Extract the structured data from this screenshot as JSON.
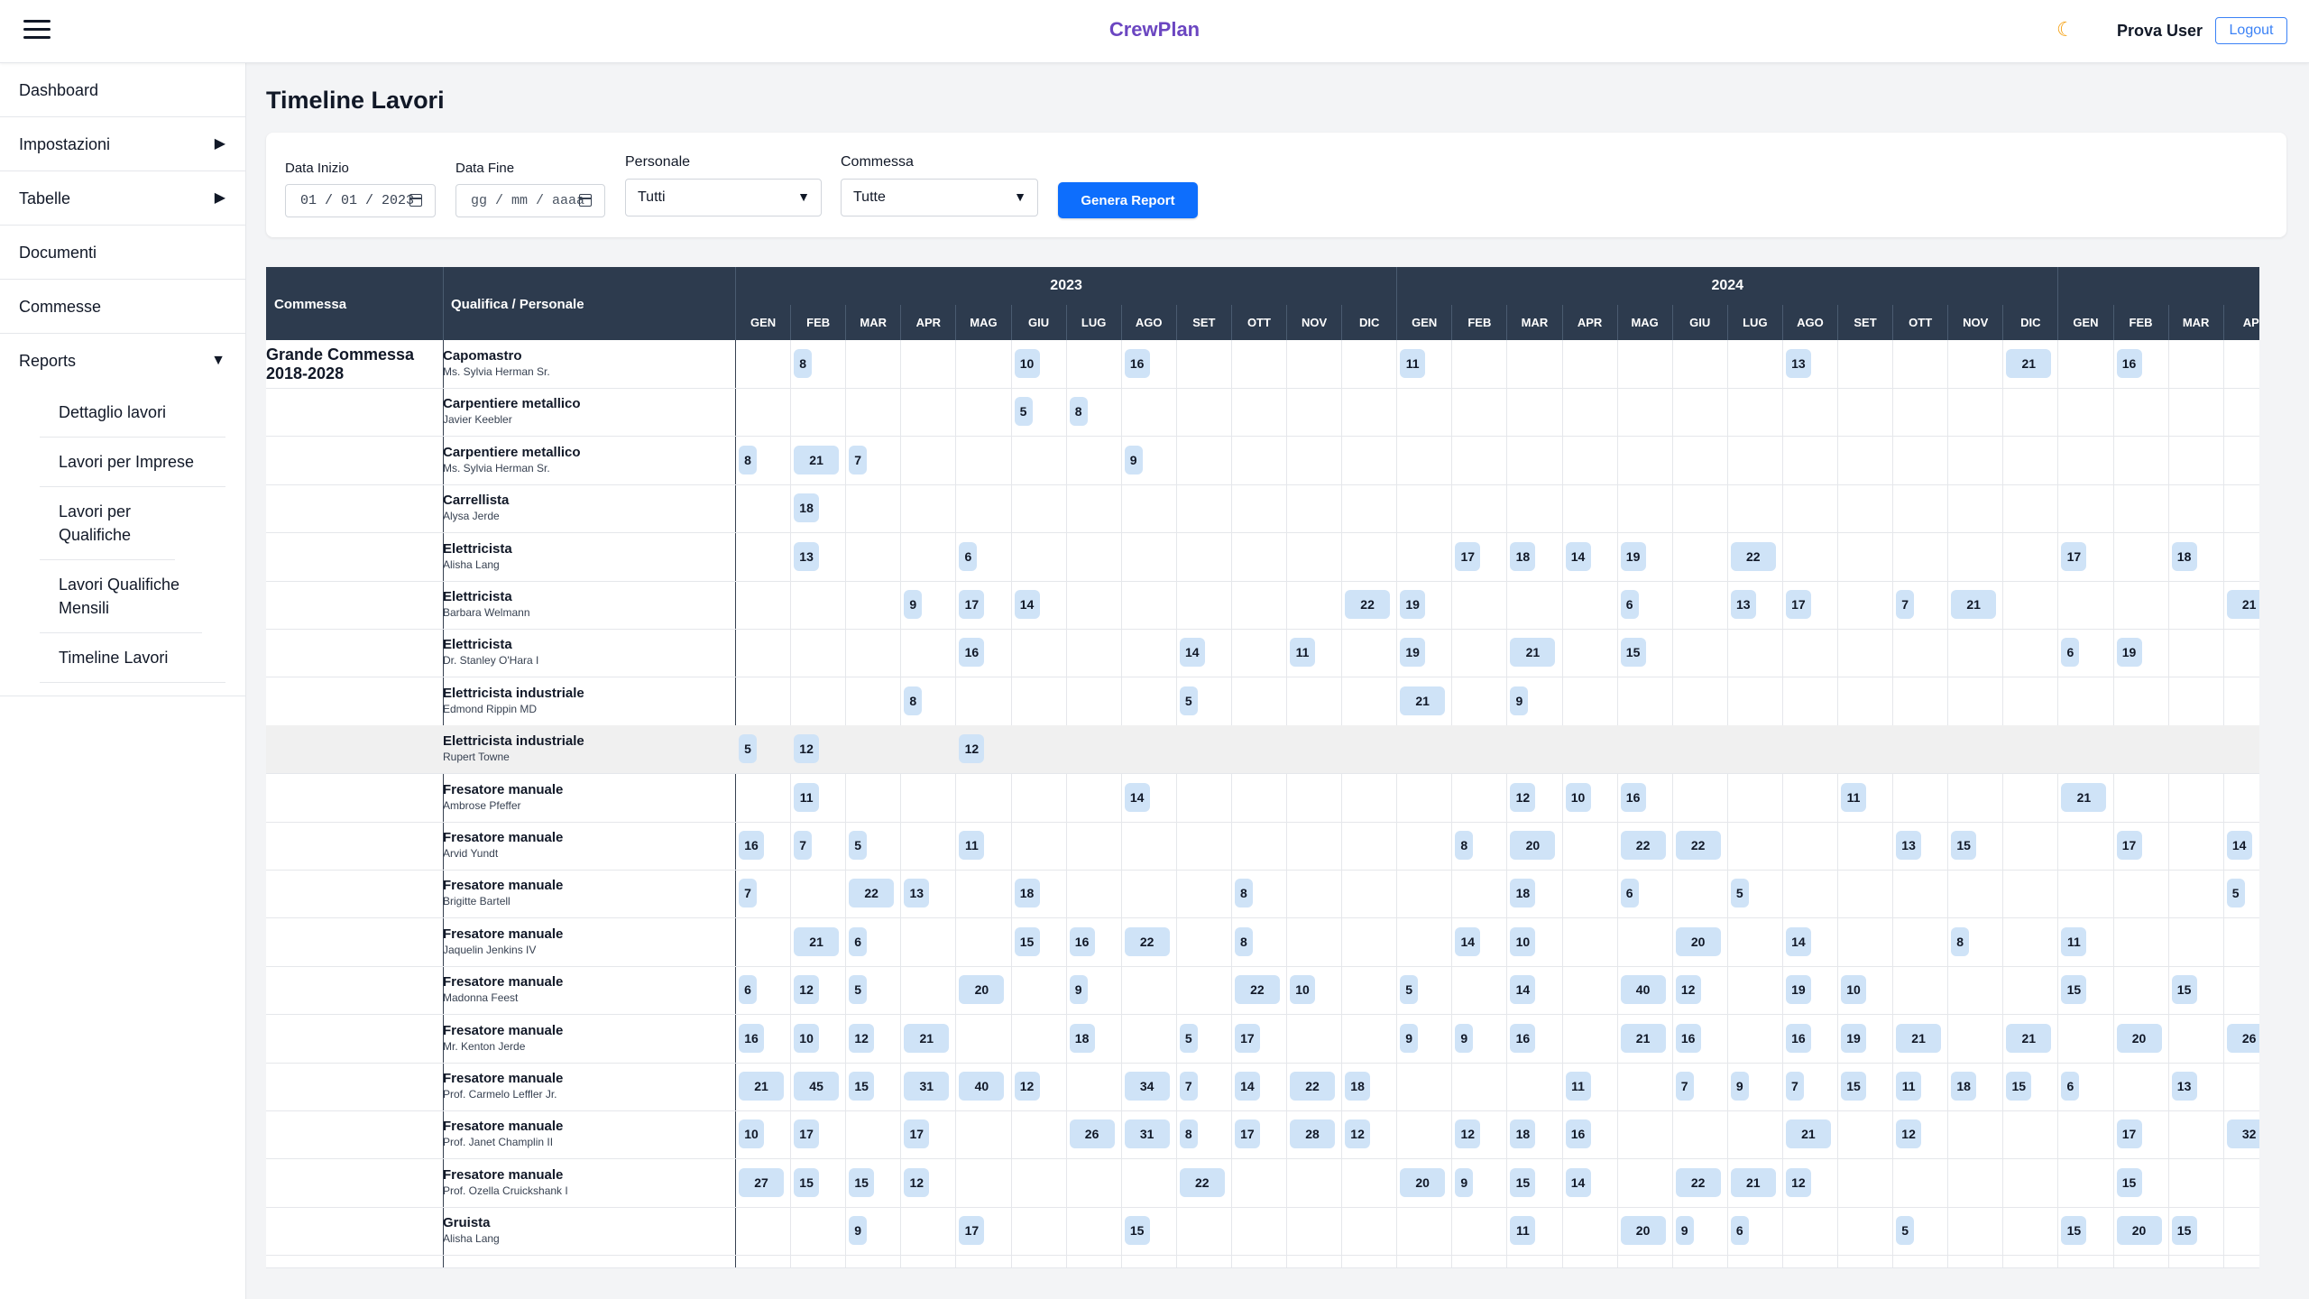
{
  "header": {
    "brand": "CrewPlan",
    "theme_icon": "moon-icon",
    "user": "Prova User",
    "logout_label": "Logout"
  },
  "sidebar": {
    "items": [
      {
        "label": "Dashboard",
        "arrow": ""
      },
      {
        "label": "Impostazioni",
        "arrow": "▶"
      },
      {
        "label": "Tabelle",
        "arrow": "▶"
      },
      {
        "label": "Documenti",
        "arrow": ""
      },
      {
        "label": "Commesse",
        "arrow": ""
      },
      {
        "label": "Reports",
        "arrow": "▼"
      }
    ],
    "reports_sub": [
      "Dettaglio lavori",
      "Lavori per Imprese",
      "Lavori per Qualifiche",
      "Lavori Qualifiche Mensili",
      "Timeline Lavori"
    ]
  },
  "page": {
    "title": "Timeline Lavori"
  },
  "filters": {
    "start_label": "Data Inizio",
    "start_value": "01 / 01 / 2023",
    "end_label": "Data Fine",
    "end_placeholder": "gg / mm / aaaa",
    "personale_label": "Personale",
    "personale_value": "Tutti",
    "commessa_label": "Commessa",
    "commessa_value": "Tutte",
    "generate_label": "Genera Report"
  },
  "timeline": {
    "col_commessa": "Commessa",
    "col_qualifica": "Qualifica / Personale",
    "commessa_name": "Grande Commessa 2018-2028",
    "years": [
      "2023",
      "2024",
      ""
    ],
    "months": [
      "GEN",
      "FEB",
      "MAR",
      "APR",
      "MAG",
      "GIU",
      "LUG",
      "AGO",
      "SET",
      "OTT",
      "NOV",
      "DIC",
      "GEN",
      "FEB",
      "MAR",
      "APR",
      "MAG",
      "GIU",
      "LUG",
      "AGO",
      "SET",
      "OTT",
      "NOV",
      "DIC",
      "GEN",
      "FEB",
      "MAR",
      "AP"
    ],
    "rows": [
      {
        "qualifica": "Capomastro",
        "personale": "Ms. Sylvia Herman Sr.",
        "values": [
          null,
          8,
          null,
          null,
          null,
          10,
          null,
          16,
          null,
          null,
          null,
          null,
          11,
          null,
          null,
          null,
          null,
          null,
          null,
          13,
          null,
          null,
          null,
          21,
          null,
          16,
          null,
          null
        ]
      },
      {
        "qualifica": "Carpentiere metallico",
        "personale": "Javier Keebler",
        "values": [
          null,
          null,
          null,
          null,
          null,
          5,
          8,
          null,
          null,
          null,
          null,
          null,
          null,
          null,
          null,
          null,
          null,
          null,
          null,
          null,
          null,
          null,
          null,
          null,
          null,
          null,
          null,
          null
        ]
      },
      {
        "qualifica": "Carpentiere metallico",
        "personale": "Ms. Sylvia Herman Sr.",
        "values": [
          8,
          21,
          7,
          null,
          null,
          null,
          null,
          9,
          null,
          null,
          null,
          null,
          null,
          null,
          null,
          null,
          null,
          null,
          null,
          null,
          null,
          null,
          null,
          null,
          null,
          null,
          null,
          null
        ]
      },
      {
        "qualifica": "Carrellista",
        "personale": "Alysa Jerde",
        "values": [
          null,
          18,
          null,
          null,
          null,
          null,
          null,
          null,
          null,
          null,
          null,
          null,
          null,
          null,
          null,
          null,
          null,
          null,
          null,
          null,
          null,
          null,
          null,
          null,
          null,
          null,
          null,
          null
        ]
      },
      {
        "qualifica": "Elettricista",
        "personale": "Alisha Lang",
        "values": [
          null,
          13,
          null,
          null,
          6,
          null,
          null,
          null,
          null,
          null,
          null,
          null,
          null,
          17,
          18,
          14,
          19,
          null,
          22,
          null,
          null,
          null,
          null,
          null,
          17,
          null,
          18,
          null
        ]
      },
      {
        "qualifica": "Elettricista",
        "personale": "Barbara Welmann",
        "values": [
          null,
          null,
          null,
          9,
          17,
          14,
          null,
          null,
          null,
          null,
          null,
          22,
          19,
          null,
          null,
          null,
          6,
          null,
          13,
          17,
          null,
          7,
          21,
          null,
          null,
          null,
          null,
          21
        ]
      },
      {
        "qualifica": "Elettricista",
        "personale": "Dr. Stanley O'Hara I",
        "values": [
          null,
          null,
          null,
          null,
          16,
          null,
          null,
          null,
          14,
          null,
          11,
          null,
          19,
          null,
          21,
          null,
          15,
          null,
          null,
          null,
          null,
          null,
          null,
          null,
          6,
          19,
          null,
          null
        ]
      },
      {
        "qualifica": "Elettricista industriale",
        "personale": "Edmond Rippin MD",
        "values": [
          null,
          null,
          null,
          8,
          null,
          null,
          null,
          null,
          5,
          null,
          null,
          null,
          21,
          null,
          9,
          null,
          null,
          null,
          null,
          null,
          null,
          null,
          null,
          null,
          null,
          null,
          null,
          null
        ]
      },
      {
        "qualifica": "Elettricista industriale",
        "personale": "Rupert Towne",
        "values": [
          5,
          12,
          null,
          null,
          12,
          null,
          null,
          null,
          null,
          null,
          null,
          null,
          null,
          null,
          null,
          null,
          null,
          null,
          null,
          null,
          null,
          null,
          null,
          null,
          null,
          null,
          null,
          null
        ]
      },
      {
        "qualifica": "Fresatore manuale",
        "personale": "Ambrose Pfeffer",
        "values": [
          null,
          11,
          null,
          null,
          null,
          null,
          null,
          14,
          null,
          null,
          null,
          null,
          null,
          null,
          12,
          10,
          16,
          null,
          null,
          null,
          11,
          null,
          null,
          null,
          21,
          null,
          null,
          null
        ]
      },
      {
        "qualifica": "Fresatore manuale",
        "personale": "Arvid Yundt",
        "values": [
          16,
          7,
          5,
          null,
          11,
          null,
          null,
          null,
          null,
          null,
          null,
          null,
          null,
          8,
          20,
          null,
          22,
          22,
          null,
          null,
          null,
          13,
          15,
          null,
          null,
          17,
          null,
          14
        ]
      },
      {
        "qualifica": "Fresatore manuale",
        "personale": "Brigitte Bartell",
        "values": [
          7,
          null,
          22,
          13,
          null,
          18,
          null,
          null,
          null,
          8,
          null,
          null,
          null,
          null,
          18,
          null,
          6,
          null,
          5,
          null,
          null,
          null,
          null,
          null,
          null,
          null,
          null,
          5
        ]
      },
      {
        "qualifica": "Fresatore manuale",
        "personale": "Jaquelin Jenkins IV",
        "values": [
          null,
          21,
          6,
          null,
          null,
          15,
          16,
          22,
          null,
          8,
          null,
          null,
          null,
          14,
          10,
          null,
          null,
          20,
          null,
          14,
          null,
          null,
          8,
          null,
          11,
          null,
          null,
          null
        ]
      },
      {
        "qualifica": "Fresatore manuale",
        "personale": "Madonna Feest",
        "values": [
          6,
          12,
          5,
          null,
          20,
          null,
          9,
          null,
          null,
          22,
          10,
          null,
          5,
          null,
          14,
          null,
          40,
          12,
          null,
          19,
          10,
          null,
          null,
          null,
          15,
          null,
          15,
          null
        ]
      },
      {
        "qualifica": "Fresatore manuale",
        "personale": "Mr. Kenton Jerde",
        "values": [
          16,
          10,
          12,
          21,
          null,
          null,
          18,
          null,
          5,
          17,
          null,
          null,
          9,
          9,
          16,
          null,
          21,
          16,
          null,
          16,
          19,
          21,
          null,
          21,
          null,
          20,
          null,
          26
        ]
      },
      {
        "qualifica": "Fresatore manuale",
        "personale": "Prof. Carmelo Leffler Jr.",
        "values": [
          21,
          45,
          15,
          31,
          40,
          12,
          null,
          34,
          7,
          14,
          22,
          18,
          null,
          null,
          null,
          11,
          null,
          7,
          9,
          7,
          15,
          11,
          18,
          15,
          6,
          null,
          13,
          null
        ]
      },
      {
        "qualifica": "Fresatore manuale",
        "personale": "Prof. Janet Champlin II",
        "values": [
          10,
          17,
          null,
          17,
          null,
          null,
          26,
          31,
          8,
          17,
          28,
          12,
          null,
          12,
          18,
          16,
          null,
          null,
          null,
          21,
          null,
          12,
          null,
          null,
          null,
          17,
          null,
          32
        ]
      },
      {
        "qualifica": "Fresatore manuale",
        "personale": "Prof. Ozella Cruickshank I",
        "values": [
          27,
          15,
          15,
          12,
          null,
          null,
          null,
          null,
          22,
          null,
          null,
          null,
          20,
          9,
          15,
          14,
          null,
          22,
          21,
          12,
          null,
          null,
          null,
          null,
          null,
          15,
          null,
          null
        ]
      },
      {
        "qualifica": "Gruista",
        "personale": "Alisha Lang",
        "values": [
          null,
          null,
          9,
          null,
          17,
          null,
          null,
          15,
          null,
          null,
          null,
          null,
          null,
          null,
          11,
          null,
          20,
          9,
          6,
          null,
          null,
          5,
          null,
          null,
          15,
          20,
          15,
          null
        ]
      }
    ]
  }
}
